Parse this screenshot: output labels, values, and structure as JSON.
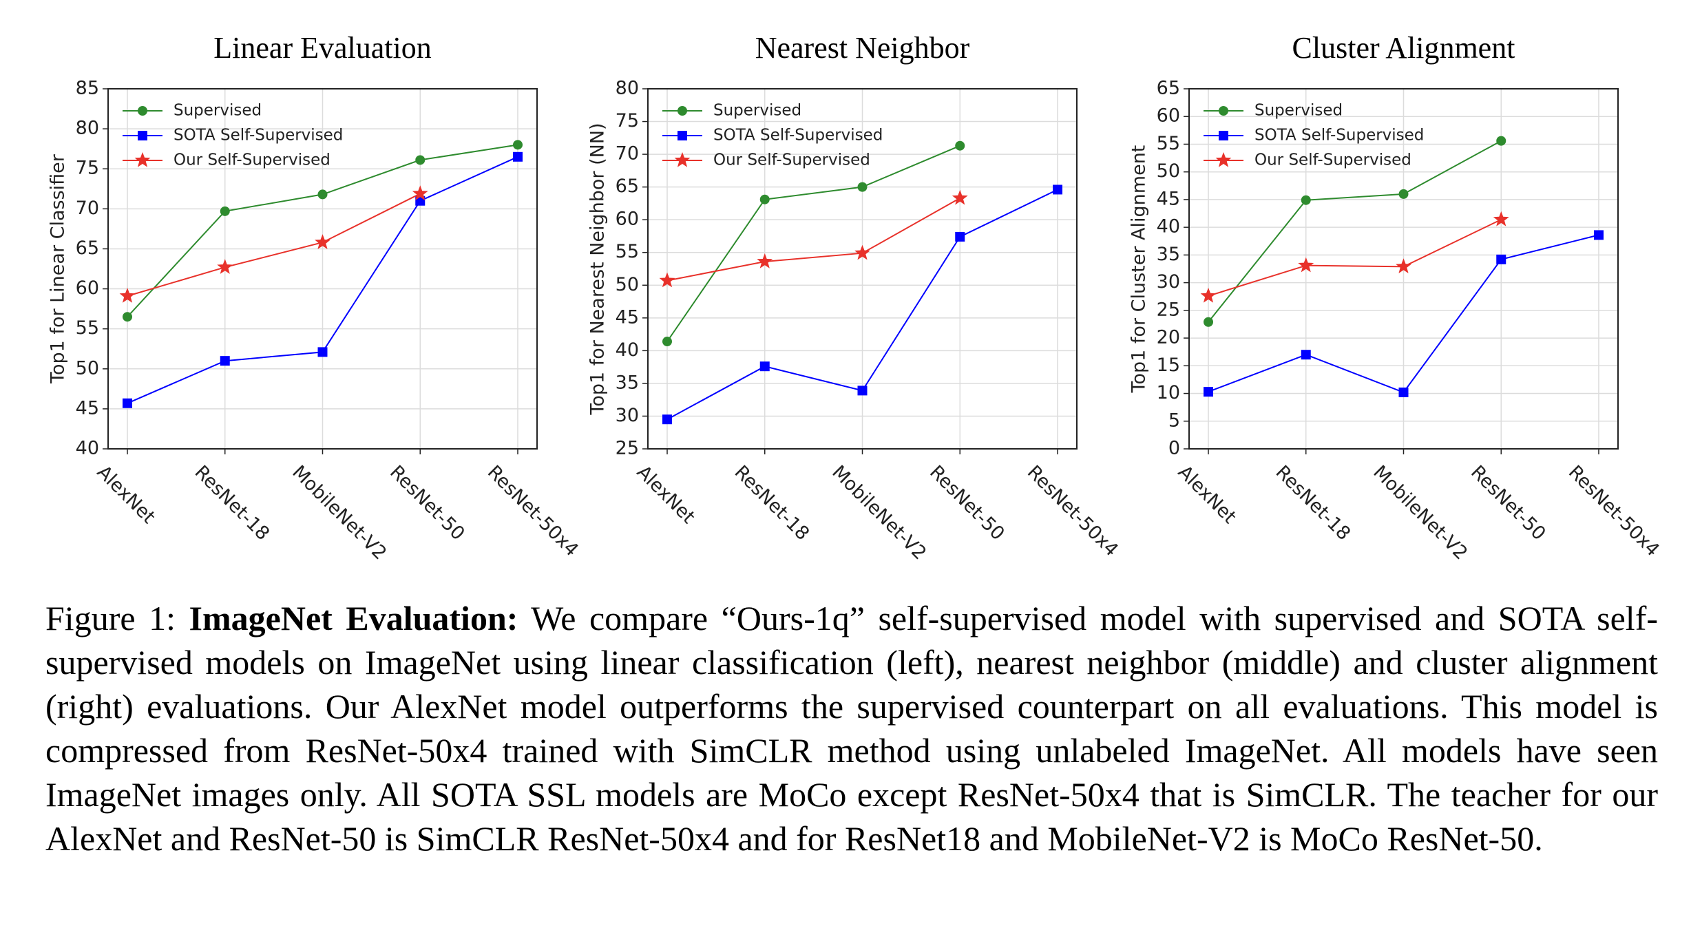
{
  "chart_data": [
    {
      "type": "line",
      "title": "Linear Evaluation",
      "y_label": "Top1 for Linear Classifier",
      "categories": [
        "AlexNet",
        "ResNet-18",
        "MobileNet-V2",
        "ResNet-50",
        "ResNet-50x4"
      ],
      "ylim": [
        40,
        85
      ],
      "yticks": [
        40,
        45,
        50,
        55,
        60,
        65,
        70,
        75,
        80,
        85
      ],
      "grid": true,
      "legend": "upper left",
      "series": [
        {
          "name": "Supervised",
          "color": "#2e8b2e",
          "marker": "circle",
          "values": [
            56.5,
            69.7,
            71.8,
            76.1,
            78.0
          ]
        },
        {
          "name": "SOTA Self-Supervised",
          "color": "#0000ff",
          "marker": "square",
          "values": [
            45.7,
            51.0,
            52.1,
            71.0,
            76.5
          ]
        },
        {
          "name": "Our Self-Supervised",
          "color": "#e8312a",
          "marker": "star",
          "values": [
            59.1,
            62.7,
            65.8,
            71.9,
            null
          ]
        }
      ]
    },
    {
      "type": "line",
      "title": "Nearest Neighbor",
      "y_label": "Top1 for Nearest Neighbor (NN)",
      "categories": [
        "AlexNet",
        "ResNet-18",
        "MobileNet-V2",
        "ResNet-50",
        "ResNet-50x4"
      ],
      "ylim": [
        25,
        80
      ],
      "yticks": [
        25,
        30,
        35,
        40,
        45,
        50,
        55,
        60,
        65,
        70,
        75,
        80
      ],
      "grid": true,
      "legend": "upper left",
      "series": [
        {
          "name": "Supervised",
          "color": "#2e8b2e",
          "marker": "circle",
          "values": [
            41.4,
            63.1,
            65.0,
            71.3,
            null
          ]
        },
        {
          "name": "SOTA Self-Supervised",
          "color": "#0000ff",
          "marker": "square",
          "values": [
            29.5,
            37.6,
            33.9,
            57.4,
            64.6
          ]
        },
        {
          "name": "Our Self-Supervised",
          "color": "#e8312a",
          "marker": "star",
          "values": [
            50.7,
            53.6,
            54.9,
            63.3,
            null
          ]
        }
      ]
    },
    {
      "type": "line",
      "title": "Cluster Alignment",
      "y_label": "Top1 for Cluster Alignment",
      "categories": [
        "AlexNet",
        "ResNet-18",
        "MobileNet-V2",
        "ResNet-50",
        "ResNet-50x4"
      ],
      "ylim": [
        0,
        65
      ],
      "yticks": [
        0,
        5,
        10,
        15,
        20,
        25,
        30,
        35,
        40,
        45,
        50,
        55,
        60,
        65
      ],
      "grid": true,
      "legend": "upper left",
      "series": [
        {
          "name": "Supervised",
          "color": "#2e8b2e",
          "marker": "circle",
          "values": [
            22.9,
            44.9,
            46.0,
            55.6,
            null
          ]
        },
        {
          "name": "SOTA Self-Supervised",
          "color": "#0000ff",
          "marker": "square",
          "values": [
            10.3,
            17.0,
            10.2,
            34.2,
            38.6
          ]
        },
        {
          "name": "Our Self-Supervised",
          "color": "#e8312a",
          "marker": "star",
          "values": [
            27.6,
            33.1,
            32.9,
            41.4,
            null
          ]
        }
      ]
    }
  ],
  "caption": {
    "label": "Figure 1:",
    "heading": "ImageNet Evaluation:",
    "text": "We compare “Ours-1q” self-supervised model with supervised and SOTA self-supervised models on ImageNet using linear classification (left), nearest neighbor (middle) and cluster alignment (right) evaluations. Our AlexNet model outperforms the supervised counterpart on all evaluations. This model is compressed from ResNet-50x4 trained with SimCLR method using unlabeled ImageNet. All models have seen ImageNet images only. All SOTA SSL models are MoCo except ResNet-50x4 that is SimCLR. The teacher for our AlexNet and ResNet-50 is SimCLR ResNet-50x4 and for ResNet18 and MobileNet-V2 is MoCo ResNet-50."
  }
}
